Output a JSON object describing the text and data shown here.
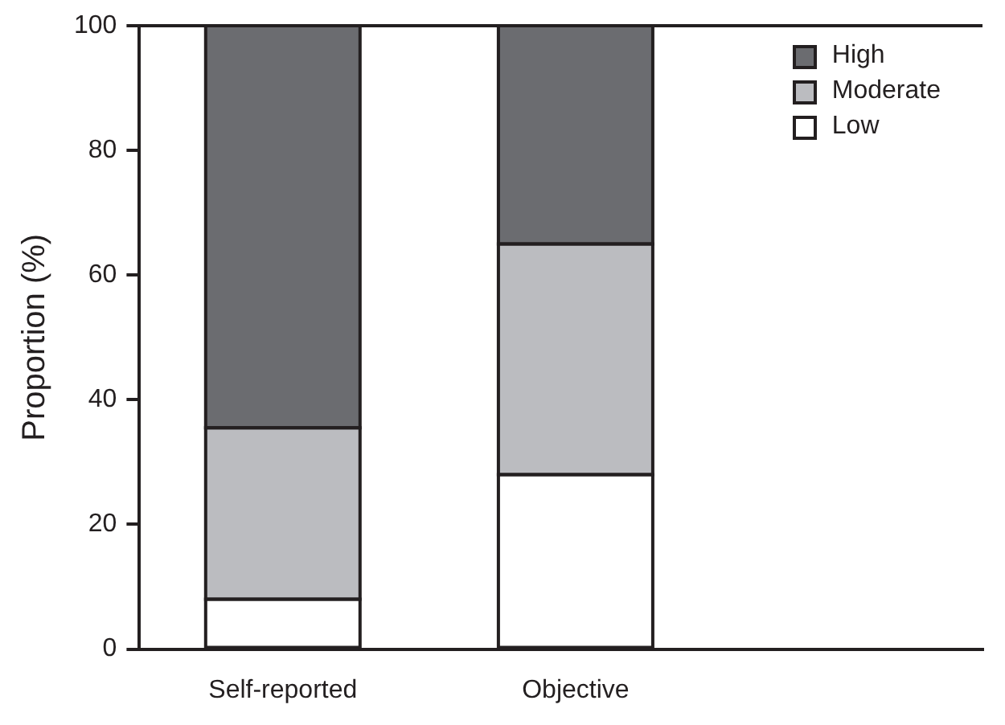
{
  "chart_data": {
    "type": "bar",
    "stacked": true,
    "ylabel": "Proportion (%)",
    "categories": [
      "Self-reported",
      "Objective"
    ],
    "series": [
      {
        "name": "Low",
        "color": "#ffffff",
        "values": [
          8,
          28
        ]
      },
      {
        "name": "Moderate",
        "color": "#bbbcc0",
        "values": [
          27.5,
          37
        ]
      },
      {
        "name": "High",
        "color": "#6b6c70",
        "values": [
          64.5,
          35
        ]
      }
    ],
    "ylim": [
      0,
      100
    ],
    "yticks": [
      0,
      20,
      40,
      60,
      80,
      100
    ],
    "grid": false,
    "legend": "top right"
  }
}
